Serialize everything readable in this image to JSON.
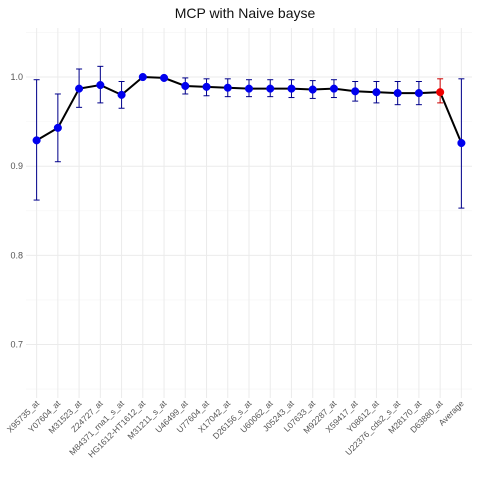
{
  "chart_data": {
    "type": "line",
    "title": "MCP with Naive bayse",
    "xlabel": "",
    "ylabel": "",
    "ylim": [
      0.64,
      1.055
    ],
    "y_ticks": [
      0.7,
      0.8,
      0.9,
      1.0
    ],
    "y_tick_labels": [
      "0.7",
      "0.8",
      "0.9",
      "1.0"
    ],
    "grid": true,
    "legend": "none",
    "categories": [
      "X95735_at",
      "Y07604_at",
      "M31523_at",
      "Z24727_at",
      "M84371_rna1_s_at",
      "HG1612-HT1612_at",
      "M31211_s_at",
      "U46499_at",
      "U77604_at",
      "X17042_at",
      "D26156_s_at",
      "U60062_at",
      "J05243_at",
      "L07633_at",
      "M92287_at",
      "X59417_at",
      "Y08612_at",
      "U22376_cds2_s_at",
      "M28170_at",
      "D63880_at",
      "Average"
    ],
    "values": [
      0.929,
      0.943,
      0.987,
      0.991,
      0.98,
      1.0,
      0.999,
      0.99,
      0.989,
      0.988,
      0.987,
      0.987,
      0.987,
      0.986,
      0.987,
      0.984,
      0.983,
      0.982,
      0.982,
      0.983,
      0.926
    ],
    "error_low": [
      0.862,
      0.905,
      0.966,
      0.971,
      0.965,
      1.0,
      0.999,
      0.981,
      0.979,
      0.978,
      0.978,
      0.978,
      0.977,
      0.976,
      0.977,
      0.973,
      0.971,
      0.969,
      0.969,
      0.971,
      0.853
    ],
    "error_high": [
      0.997,
      0.981,
      1.009,
      1.012,
      0.995,
      1.0,
      0.999,
      0.999,
      0.998,
      0.998,
      0.997,
      0.997,
      0.997,
      0.996,
      0.997,
      0.995,
      0.995,
      0.995,
      0.995,
      0.998,
      0.998
    ],
    "highlight_index": 19,
    "colors": {
      "point": "#0000ee",
      "highlight": "#ee0000",
      "line": "#000000",
      "error_bar": "#00008b",
      "highlight_error_bar": "#cc0000",
      "grid_major": "#ebebeb",
      "grid_minor": "#f5f5f5"
    }
  }
}
